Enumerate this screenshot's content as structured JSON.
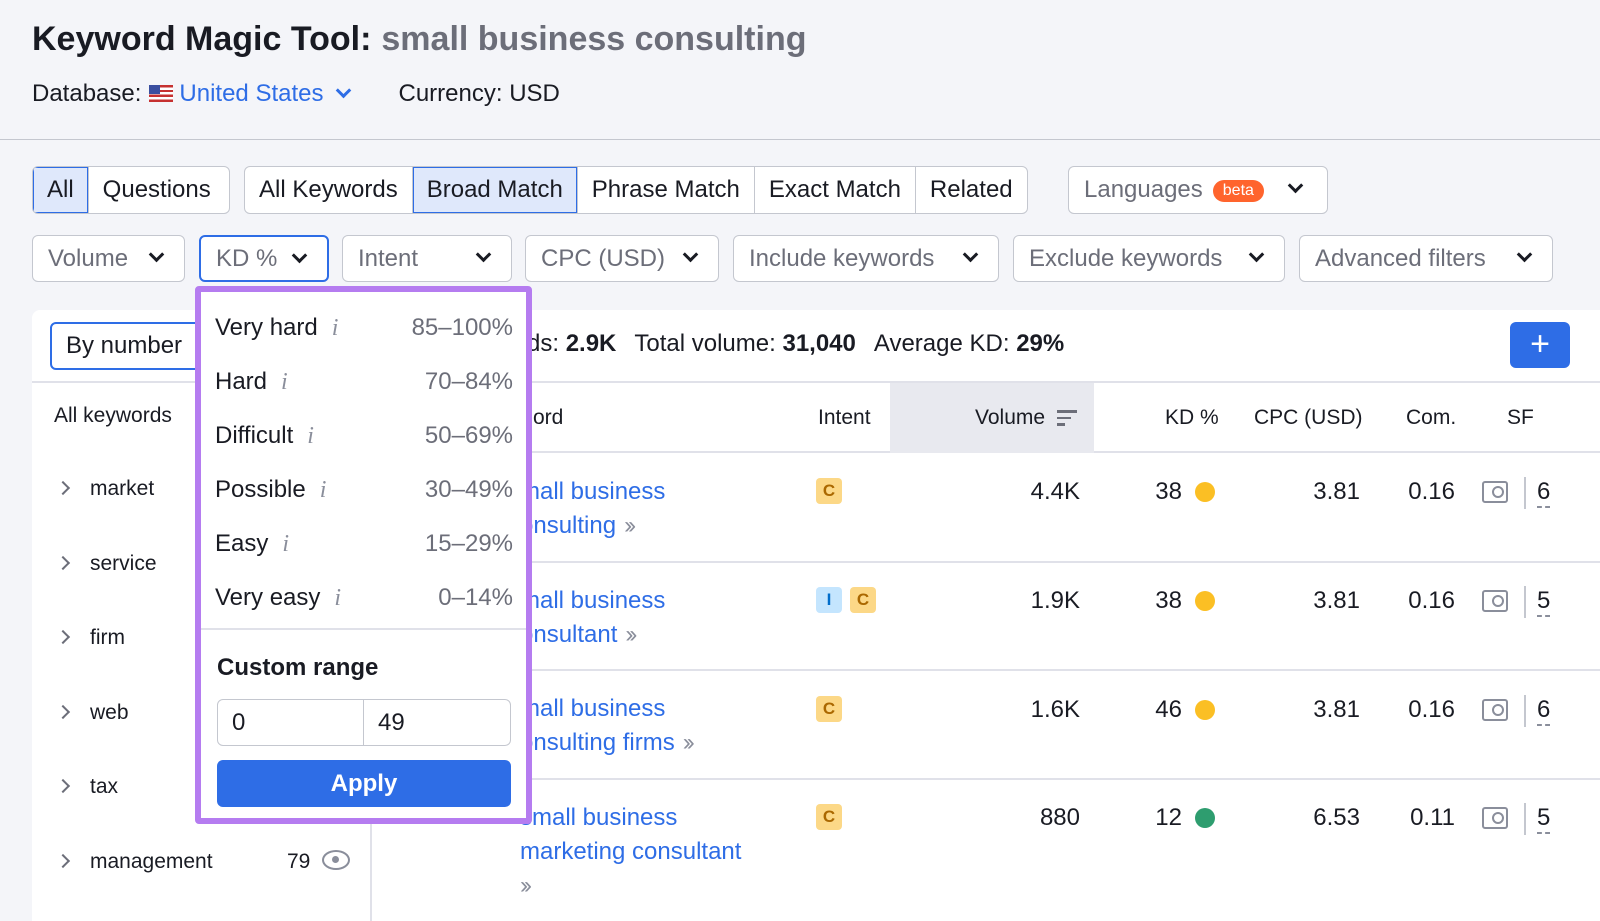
{
  "header": {
    "title": "Keyword Magic Tool:",
    "query": "small business consulting",
    "database_label": "Database:",
    "database_value": "United States",
    "currency": "Currency: USD"
  },
  "tabs_type": [
    "All",
    "Questions"
  ],
  "tabs_match": [
    "All Keywords",
    "Broad Match",
    "Phrase Match",
    "Exact Match",
    "Related"
  ],
  "active_type": "All",
  "active_match": "Broad Match",
  "languages": {
    "label": "Languages",
    "badge": "beta"
  },
  "filters": [
    "Volume",
    "KD %",
    "Intent",
    "CPC (USD)",
    "Include keywords",
    "Exclude keywords",
    "Advanced filters"
  ],
  "group_toggle": "By number",
  "stats": {
    "keywords_label": "rds:",
    "keywords_value": "2.9K",
    "volume_label": "Total volume:",
    "volume_value": "31,040",
    "kd_label": "Average KD:",
    "kd_value": "29%"
  },
  "add_button": "+",
  "sidebar": {
    "title": "All keywords",
    "items": [
      {
        "label": "market"
      },
      {
        "label": "service"
      },
      {
        "label": "firm"
      },
      {
        "label": "web"
      },
      {
        "label": "tax"
      },
      {
        "label": "management",
        "count": "79"
      }
    ]
  },
  "table": {
    "columns": {
      "keyword": "ord",
      "intent": "Intent",
      "volume": "Volume",
      "kd": "KD %",
      "cpc": "CPC (USD)",
      "com": "Com.",
      "sf": "SF"
    },
    "rows": [
      {
        "line1": "mall business",
        "line2": "onsulting",
        "intents": [
          "C"
        ],
        "volume": "4.4K",
        "kd": "38",
        "kd_color": "#fbbf24",
        "cpc": "3.81",
        "com": "0.16",
        "sf": "6"
      },
      {
        "line1": "mall business",
        "line2": "onsultant",
        "intents": [
          "I",
          "C"
        ],
        "volume": "1.9K",
        "kd": "38",
        "kd_color": "#fbbf24",
        "cpc": "3.81",
        "com": "0.16",
        "sf": "5"
      },
      {
        "line1": "mall business",
        "line2": "onsulting firms",
        "intents": [
          "C"
        ],
        "volume": "1.6K",
        "kd": "46",
        "kd_color": "#fbbf24",
        "cpc": "3.81",
        "com": "0.16",
        "sf": "6"
      },
      {
        "line1": "small business",
        "line2": "marketing consultant",
        "intents": [
          "C"
        ],
        "volume": "880",
        "kd": "12",
        "kd_color": "#2e9d6f",
        "cpc": "6.53",
        "com": "0.11",
        "sf": "5"
      }
    ]
  },
  "kd_dropdown": {
    "options": [
      {
        "label": "Very hard",
        "range": "85–100%"
      },
      {
        "label": "Hard",
        "range": "70–84%"
      },
      {
        "label": "Difficult",
        "range": "50–69%"
      },
      {
        "label": "Possible",
        "range": "30–49%"
      },
      {
        "label": "Easy",
        "range": "15–29%"
      },
      {
        "label": "Very easy",
        "range": "0–14%"
      }
    ],
    "info_glyph": "i",
    "custom_label": "Custom range",
    "from": "0",
    "to": "49",
    "apply": "Apply"
  }
}
